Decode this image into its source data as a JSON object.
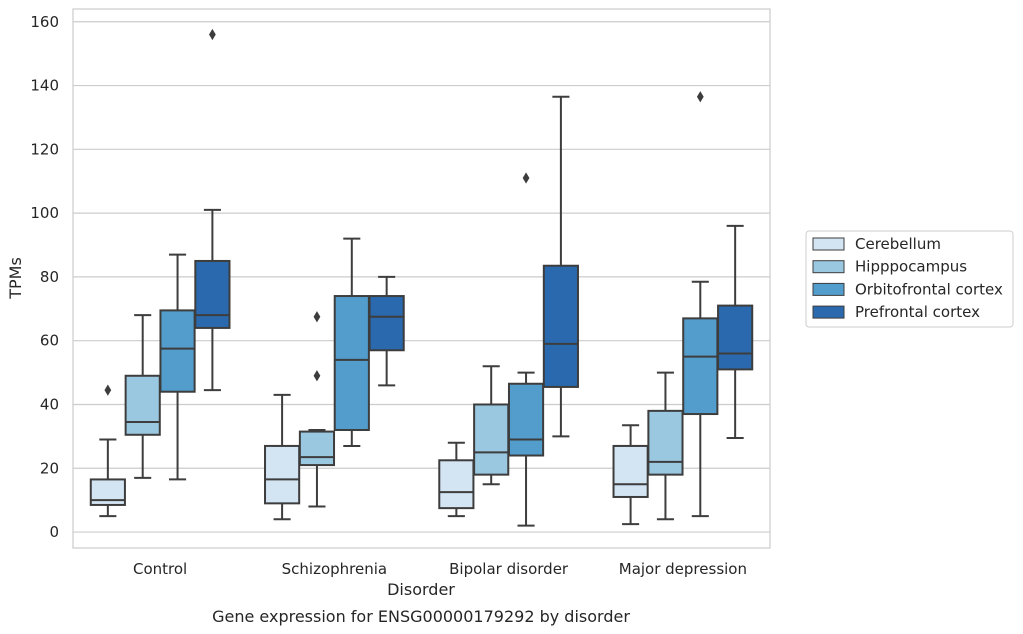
{
  "chart_data": {
    "type": "box",
    "caption": "Gene expression for ENSG00000179292 by disorder",
    "xlabel": "Disorder",
    "ylabel": "TPMs",
    "ylim": [
      -5,
      164
    ],
    "yticks": [
      0,
      20,
      40,
      60,
      80,
      100,
      120,
      140,
      160
    ],
    "grid": "horizontal",
    "legend_position": "right",
    "categories": [
      "Control",
      "Schizophrenia",
      "Bipolar disorder",
      "Major depression"
    ],
    "series": [
      {
        "name": "Cerebellum",
        "color": "#d3e4f3",
        "boxes": [
          {
            "whisker_low": 5,
            "q1": 8.5,
            "median": 10,
            "q3": 16.5,
            "whisker_high": 29,
            "outliers": [
              44.5
            ]
          },
          {
            "whisker_low": 4,
            "q1": 9,
            "median": 16.5,
            "q3": 27,
            "whisker_high": 43,
            "outliers": []
          },
          {
            "whisker_low": 5,
            "q1": 7.5,
            "median": 12.5,
            "q3": 22.5,
            "whisker_high": 28,
            "outliers": []
          },
          {
            "whisker_low": 2.5,
            "q1": 11,
            "median": 15,
            "q3": 27,
            "whisker_high": 33.5,
            "outliers": []
          }
        ]
      },
      {
        "name": "Hipppocampus",
        "color": "#9ac8e0",
        "boxes": [
          {
            "whisker_low": 17,
            "q1": 30.5,
            "median": 34.5,
            "q3": 49,
            "whisker_high": 68,
            "outliers": []
          },
          {
            "whisker_low": 8,
            "q1": 21,
            "median": 23.5,
            "q3": 31.5,
            "whisker_high": 32,
            "outliers": [
              67.5,
              49
            ]
          },
          {
            "whisker_low": 15,
            "q1": 18,
            "median": 25,
            "q3": 40,
            "whisker_high": 52,
            "outliers": []
          },
          {
            "whisker_low": 4,
            "q1": 18,
            "median": 22,
            "q3": 38,
            "whisker_high": 50,
            "outliers": []
          }
        ]
      },
      {
        "name": "Orbitofrontal cortex",
        "color": "#529dcc",
        "boxes": [
          {
            "whisker_low": 16.5,
            "q1": 44,
            "median": 57.5,
            "q3": 69.5,
            "whisker_high": 87,
            "outliers": []
          },
          {
            "whisker_low": 27,
            "q1": 32,
            "median": 54,
            "q3": 74,
            "whisker_high": 92,
            "outliers": []
          },
          {
            "whisker_low": 2,
            "q1": 24,
            "median": 29,
            "q3": 46.5,
            "whisker_high": 50,
            "outliers": [
              111
            ]
          },
          {
            "whisker_low": 5,
            "q1": 37,
            "median": 55,
            "q3": 67,
            "whisker_high": 78.5,
            "outliers": [
              136.5
            ]
          }
        ]
      },
      {
        "name": "Prefrontal cortex",
        "color": "#2a69ad",
        "boxes": [
          {
            "whisker_low": 44.5,
            "q1": 64,
            "median": 68,
            "q3": 85,
            "whisker_high": 101,
            "outliers": [
              156
            ]
          },
          {
            "whisker_low": 46,
            "q1": 57,
            "median": 67.5,
            "q3": 74,
            "whisker_high": 80,
            "outliers": []
          },
          {
            "whisker_low": 30,
            "q1": 45.5,
            "median": 59,
            "q3": 83.5,
            "whisker_high": 136.5,
            "outliers": []
          },
          {
            "whisker_low": 29.5,
            "q1": 51,
            "median": 56,
            "q3": 71,
            "whisker_high": 96,
            "outliers": []
          }
        ]
      }
    ]
  }
}
